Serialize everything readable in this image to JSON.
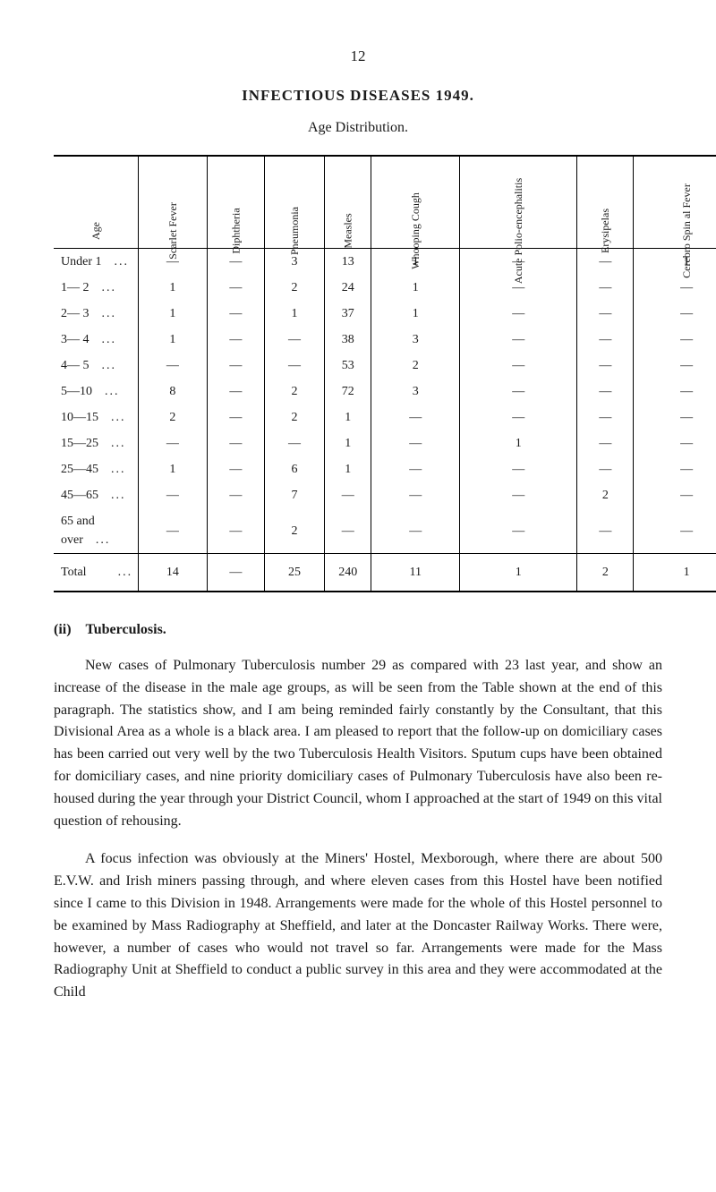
{
  "page_number": "12",
  "title": "INFECTIOUS DISEASES 1949.",
  "subtitle": "Age Distribution.",
  "table": {
    "headers": [
      "Age",
      "Scarlet Fever",
      "Diphtheria",
      "Pneumonia",
      "Measles",
      "Whooping Cough",
      "Acute Polio-encephalitis",
      "Erysipelas",
      "Cerebro Spin al Fever"
    ],
    "rows": [
      {
        "age": "Under 1",
        "dots": "...",
        "cells": [
          "—",
          "—",
          "3",
          "13",
          "1",
          "—",
          "—",
          "1"
        ]
      },
      {
        "age": "1— 2",
        "dots": "...",
        "cells": [
          "1",
          "—",
          "2",
          "24",
          "1",
          "—",
          "—",
          "—"
        ]
      },
      {
        "age": "2— 3",
        "dots": "...",
        "cells": [
          "1",
          "—",
          "1",
          "37",
          "1",
          "—",
          "—",
          "—"
        ]
      },
      {
        "age": "3— 4",
        "dots": "...",
        "cells": [
          "1",
          "—",
          "—",
          "38",
          "3",
          "—",
          "—",
          "—"
        ]
      },
      {
        "age": "4— 5",
        "dots": "...",
        "cells": [
          "—",
          "—",
          "—",
          "53",
          "2",
          "—",
          "—",
          "—"
        ]
      },
      {
        "age": "5—10",
        "dots": "...",
        "cells": [
          "8",
          "—",
          "2",
          "72",
          "3",
          "—",
          "—",
          "—"
        ]
      },
      {
        "age": "10—15",
        "dots": "...",
        "cells": [
          "2",
          "—",
          "2",
          "1",
          "—",
          "—",
          "—",
          "—"
        ]
      },
      {
        "age": "15—25",
        "dots": "...",
        "cells": [
          "—",
          "—",
          "—",
          "1",
          "—",
          "1",
          "—",
          "—"
        ]
      },
      {
        "age": "25—45",
        "dots": "...",
        "cells": [
          "1",
          "—",
          "6",
          "1",
          "—",
          "—",
          "—",
          "—"
        ]
      },
      {
        "age": "45—65",
        "dots": "...",
        "cells": [
          "—",
          "—",
          "7",
          "—",
          "—",
          "—",
          "2",
          "—"
        ]
      },
      {
        "age": "65 and over",
        "dots": "...",
        "cells": [
          "—",
          "—",
          "2",
          "—",
          "—",
          "—",
          "—",
          "—"
        ]
      }
    ],
    "total": {
      "label": "Total",
      "dots": "...",
      "cells": [
        "14",
        "—",
        "25",
        "240",
        "11",
        "1",
        "2",
        "1"
      ]
    }
  },
  "section_title": "(ii) Tuberculosis.",
  "paragraph1": "New cases of Pulmonary Tuberculosis number 29 as compared with 23 last year, and show an increase of the disease in the male age groups, as will be seen from the Table shown at the end of this paragraph. The statistics show, and I am being reminded fairly constantly by the Consultant, that this Divisional Area as a whole is a black area. I am pleased to report that the follow-up on domiciliary cases has been carried out very well by the two Tuberculosis Health Visitors. Sputum cups have been obtained for domiciliary cases, and nine priority domiciliary cases of Pulmonary Tuberculosis have also been re-housed during the year through your District Council, whom I approached at the start of 1949 on this vital question of rehousing.",
  "paragraph2": "A focus infection was obviously at the Miners' Hostel, Mexborough, where there are about 500 E.V.W. and Irish miners passing through, and where eleven cases from this Hostel have been notified since I came to this Division in 1948. Arrangements were made for the whole of this Hostel personnel to be examined by Mass Radiography at Sheffield, and later at the Doncaster Railway Works. There were, however, a number of cases who would not travel so far. Arrangements were made for the Mass Radiography Unit at Sheffield to conduct a public survey in this area and they were accommodated at the Child"
}
